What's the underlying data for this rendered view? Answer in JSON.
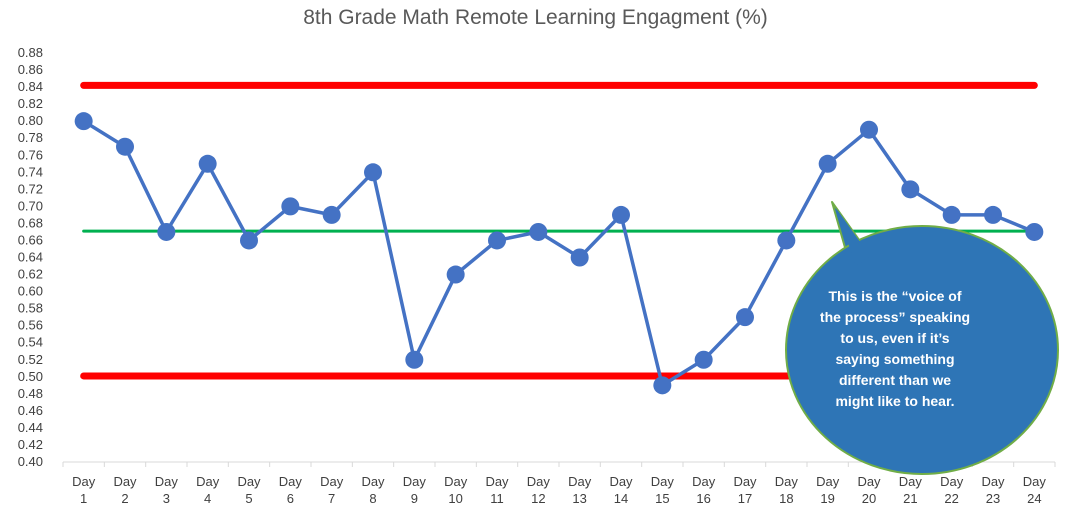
{
  "chart_data": {
    "type": "line",
    "title": "8th Grade Math Remote Learning Engagment (%)",
    "xlabel": "",
    "ylabel": "",
    "categories": [
      [
        "Day",
        "1"
      ],
      [
        "Day",
        "2"
      ],
      [
        "Day",
        "3"
      ],
      [
        "Day",
        "4"
      ],
      [
        "Day",
        "5"
      ],
      [
        "Day",
        "6"
      ],
      [
        "Day",
        "7"
      ],
      [
        "Day",
        "8"
      ],
      [
        "Day",
        "9"
      ],
      [
        "Day",
        "10"
      ],
      [
        "Day",
        "11"
      ],
      [
        "Day",
        "12"
      ],
      [
        "Day",
        "13"
      ],
      [
        "Day",
        "14"
      ],
      [
        "Day",
        "15"
      ],
      [
        "Day",
        "16"
      ],
      [
        "Day",
        "17"
      ],
      [
        "Day",
        "18"
      ],
      [
        "Day",
        "19"
      ],
      [
        "Day",
        "20"
      ],
      [
        "Day",
        "21"
      ],
      [
        "Day",
        "22"
      ],
      [
        "Day",
        "23"
      ],
      [
        "Day",
        "24"
      ]
    ],
    "series": [
      {
        "values": [
          0.8,
          0.77,
          0.67,
          0.75,
          0.66,
          0.7,
          0.69,
          0.74,
          0.52,
          0.62,
          0.66,
          0.67,
          0.64,
          0.69,
          0.49,
          0.52,
          0.57,
          0.66,
          0.75,
          0.79,
          0.72,
          0.69,
          0.69,
          0.67
        ],
        "color": "#4472c4"
      }
    ],
    "reference_lines": [
      {
        "value": 0.842,
        "color": "#ff0000"
      },
      {
        "value": 0.671,
        "color": "#00b050"
      },
      {
        "value": 0.501,
        "color": "#ff0000"
      }
    ],
    "ylim": [
      0.4,
      0.88
    ],
    "yticks": [
      "0.40",
      "0.42",
      "0.44",
      "0.46",
      "0.48",
      "0.50",
      "0.52",
      "0.54",
      "0.56",
      "0.58",
      "0.60",
      "0.62",
      "0.64",
      "0.66",
      "0.68",
      "0.70",
      "0.72",
      "0.74",
      "0.76",
      "0.78",
      "0.80",
      "0.82",
      "0.84",
      "0.86",
      "0.88"
    ],
    "grid": false,
    "legend": "none"
  },
  "callout": {
    "lines": [
      "This is the “voice of",
      "the process” speaking",
      "to us, even if it’s",
      "saying something",
      "different than we",
      "might like to hear."
    ],
    "fill": "#2e75b6",
    "border": "#70ad47"
  }
}
